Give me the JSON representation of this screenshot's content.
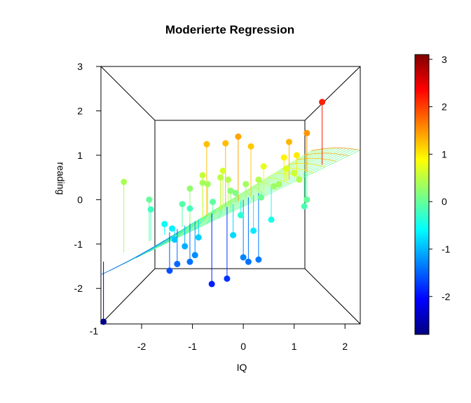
{
  "chart_data": {
    "type": "scatter",
    "title": "Moderierte Regression",
    "xlabel": "IQ",
    "ylabel": "reading",
    "x_ticks": [
      "-2",
      "-1",
      "0",
      "1",
      "2"
    ],
    "y_ticks": [
      "-2",
      "-1",
      "0",
      "1",
      "2",
      "3"
    ],
    "x_range": [
      -2.8,
      2.3
    ],
    "y_range": [
      -2.8,
      3.0
    ],
    "colorbar": {
      "ticks": [
        "-2",
        "-1",
        "0",
        "1",
        "2",
        "3"
      ],
      "range": [
        -2.8,
        3.1
      ],
      "colors": [
        "#00007F",
        "#0000FF",
        "#007FFF",
        "#00FFFF",
        "#7FFF7F",
        "#FFFF00",
        "#FF7F00",
        "#FF0000",
        "#7F0000"
      ]
    },
    "grid": false,
    "points": [
      {
        "x": -2.75,
        "y": -2.75
      },
      {
        "x": -2.35,
        "y": 0.4
      },
      {
        "x": -1.85,
        "y": 0.0
      },
      {
        "x": -1.82,
        "y": -0.22
      },
      {
        "x": -1.55,
        "y": -0.55
      },
      {
        "x": -1.45,
        "y": -1.6
      },
      {
        "x": -1.4,
        "y": -0.65
      },
      {
        "x": -1.35,
        "y": -0.9
      },
      {
        "x": -1.3,
        "y": -1.45
      },
      {
        "x": -1.2,
        "y": -0.1
      },
      {
        "x": -1.15,
        "y": -1.05
      },
      {
        "x": -1.05,
        "y": -1.4
      },
      {
        "x": -1.05,
        "y": -0.2
      },
      {
        "x": -1.05,
        "y": 0.25
      },
      {
        "x": -0.95,
        "y": -1.25
      },
      {
        "x": -0.88,
        "y": -0.85
      },
      {
        "x": -0.8,
        "y": 0.38
      },
      {
        "x": -0.8,
        "y": 0.55
      },
      {
        "x": -0.72,
        "y": 1.25
      },
      {
        "x": -0.7,
        "y": 0.35
      },
      {
        "x": -0.62,
        "y": -1.9
      },
      {
        "x": -0.6,
        "y": -0.05
      },
      {
        "x": -0.45,
        "y": 0.5
      },
      {
        "x": -0.4,
        "y": 0.65
      },
      {
        "x": -0.35,
        "y": 1.27
      },
      {
        "x": -0.32,
        "y": -1.78
      },
      {
        "x": -0.3,
        "y": 0.45
      },
      {
        "x": -0.25,
        "y": 0.2
      },
      {
        "x": -0.2,
        "y": -0.8
      },
      {
        "x": -0.15,
        "y": 0.15
      },
      {
        "x": -0.1,
        "y": 1.42
      },
      {
        "x": -0.05,
        "y": -0.35
      },
      {
        "x": 0.0,
        "y": -1.3
      },
      {
        "x": 0.05,
        "y": 0.35
      },
      {
        "x": 0.1,
        "y": -1.4
      },
      {
        "x": 0.15,
        "y": 1.2
      },
      {
        "x": 0.2,
        "y": -0.7
      },
      {
        "x": 0.3,
        "y": -1.35
      },
      {
        "x": 0.3,
        "y": 0.45
      },
      {
        "x": 0.35,
        "y": 0.05
      },
      {
        "x": 0.4,
        "y": 0.75
      },
      {
        "x": 0.55,
        "y": -0.45
      },
      {
        "x": 0.6,
        "y": 0.3
      },
      {
        "x": 0.7,
        "y": 0.35
      },
      {
        "x": 0.8,
        "y": 0.95
      },
      {
        "x": 0.85,
        "y": 0.7
      },
      {
        "x": 0.9,
        "y": 1.3
      },
      {
        "x": 1.0,
        "y": 0.6
      },
      {
        "x": 1.05,
        "y": 1.0
      },
      {
        "x": 1.1,
        "y": 0.45
      },
      {
        "x": 1.2,
        "y": -0.15
      },
      {
        "x": 1.25,
        "y": 0.0
      },
      {
        "x": 1.25,
        "y": 1.5
      },
      {
        "x": 1.55,
        "y": 2.2
      }
    ]
  }
}
